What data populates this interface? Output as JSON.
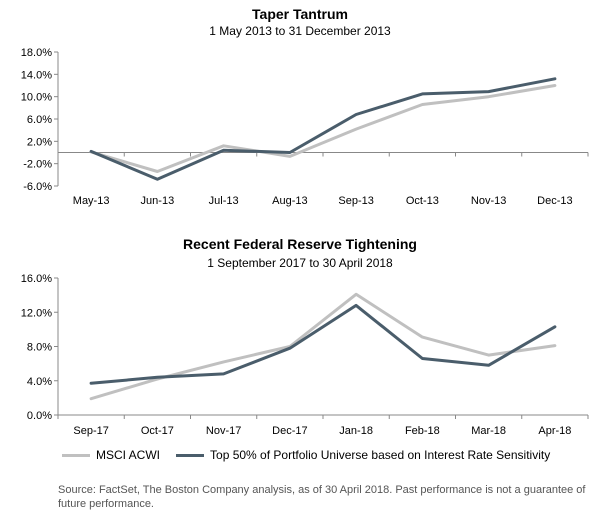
{
  "chart_data": [
    {
      "type": "line",
      "title": "Taper Tantrum",
      "subtitle": "1 May 2013 to 31 December 2013",
      "categories": [
        "May-13",
        "Jun-13",
        "Jul-13",
        "Aug-13",
        "Sep-13",
        "Oct-13",
        "Nov-13",
        "Dec-13"
      ],
      "ylim": [
        -6,
        18
      ],
      "yticks": [
        "-6.0%",
        "-2.0%",
        "2.0%",
        "6.0%",
        "10.0%",
        "14.0%",
        "18.0%"
      ],
      "ytick_values": [
        -6,
        -2,
        2,
        6,
        10,
        14,
        18
      ],
      "zero_line": true,
      "grid": false,
      "series": [
        {
          "name": "MSCI ACWI",
          "color": "#c0c0c0",
          "values": [
            0.1,
            -3.4,
            1.2,
            -0.7,
            4.2,
            8.6,
            10.0,
            12.0
          ]
        },
        {
          "name": "Top 50% of Portfolio Universe based on Interest Rate Sensitivity",
          "color": "#4a5d6b",
          "values": [
            0.2,
            -4.8,
            0.4,
            0.0,
            6.8,
            10.5,
            10.9,
            13.2
          ]
        }
      ]
    },
    {
      "type": "line",
      "title": "Recent Federal Reserve Tightening",
      "subtitle": "1 September 2017 to 30 April 2018",
      "categories": [
        "Sep-17",
        "Oct-17",
        "Nov-17",
        "Dec-17",
        "Jan-18",
        "Feb-18",
        "Mar-18",
        "Apr-18"
      ],
      "ylim": [
        0,
        16
      ],
      "yticks": [
        "0.0%",
        "4.0%",
        "8.0%",
        "12.0%",
        "16.0%"
      ],
      "ytick_values": [
        0,
        4,
        8,
        12,
        16
      ],
      "zero_line": false,
      "grid": false,
      "series": [
        {
          "name": "MSCI ACWI",
          "color": "#c0c0c0",
          "values": [
            1.9,
            4.2,
            6.2,
            8.0,
            14.1,
            9.1,
            7.0,
            8.1
          ]
        },
        {
          "name": "Top 50% of Portfolio Universe based on Interest Rate Sensitivity",
          "color": "#4a5d6b",
          "values": [
            3.7,
            4.4,
            4.8,
            7.8,
            12.8,
            6.6,
            5.8,
            10.3
          ]
        }
      ]
    }
  ],
  "legend": {
    "placement": "bottom",
    "items": [
      {
        "label": "MSCI ACWI",
        "color": "#c0c0c0"
      },
      {
        "label": "Top 50% of Portfolio Universe based on Interest Rate Sensitivity",
        "color": "#4a5d6b"
      }
    ]
  },
  "source_note": "Source: FactSet, The Boston Company analysis, as of 30 April 2018. Past performance is not a guarantee of future performance."
}
